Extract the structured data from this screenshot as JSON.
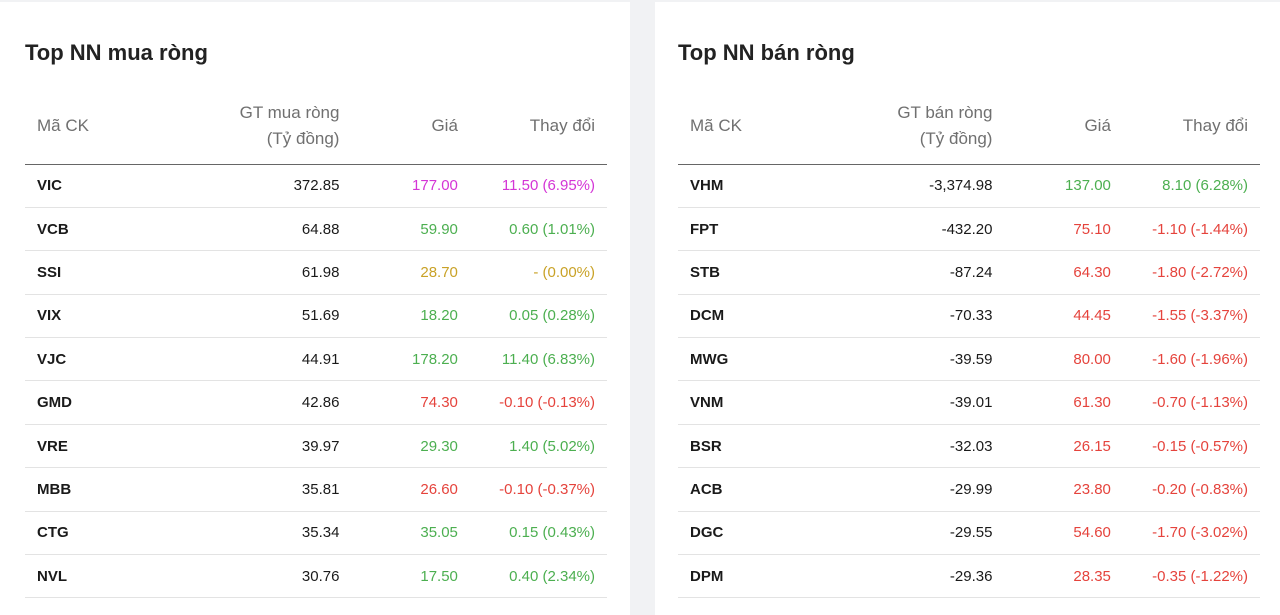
{
  "colors": {
    "ceiling": "#d435d6",
    "up": "#4caf50",
    "ref": "#c9a227",
    "down": "#e5433c"
  },
  "left": {
    "title": "Top NN mua ròng",
    "columns": {
      "symbol": "Mã CK",
      "value_line1": "GT mua ròng",
      "value_line2": "(Tỷ đồng)",
      "price": "Giá",
      "change": "Thay đổi"
    },
    "rows": [
      {
        "symbol": "VIC",
        "value": "372.85",
        "price": "177.00",
        "change": "11.50 (6.95%)",
        "status": "ceiling"
      },
      {
        "symbol": "VCB",
        "value": "64.88",
        "price": "59.90",
        "change": "0.60 (1.01%)",
        "status": "up"
      },
      {
        "symbol": "SSI",
        "value": "61.98",
        "price": "28.70",
        "change": "- (0.00%)",
        "status": "ref"
      },
      {
        "symbol": "VIX",
        "value": "51.69",
        "price": "18.20",
        "change": "0.05 (0.28%)",
        "status": "up"
      },
      {
        "symbol": "VJC",
        "value": "44.91",
        "price": "178.20",
        "change": "11.40 (6.83%)",
        "status": "up"
      },
      {
        "symbol": "GMD",
        "value": "42.86",
        "price": "74.30",
        "change": "-0.10 (-0.13%)",
        "status": "down"
      },
      {
        "symbol": "VRE",
        "value": "39.97",
        "price": "29.30",
        "change": "1.40 (5.02%)",
        "status": "up"
      },
      {
        "symbol": "MBB",
        "value": "35.81",
        "price": "26.60",
        "change": "-0.10 (-0.37%)",
        "status": "down"
      },
      {
        "symbol": "CTG",
        "value": "35.34",
        "price": "35.05",
        "change": "0.15 (0.43%)",
        "status": "up"
      },
      {
        "symbol": "NVL",
        "value": "30.76",
        "price": "17.50",
        "change": "0.40 (2.34%)",
        "status": "up"
      }
    ]
  },
  "right": {
    "title": "Top NN bán ròng",
    "columns": {
      "symbol": "Mã CK",
      "value_line1": "GT bán ròng",
      "value_line2": "(Tỷ đồng)",
      "price": "Giá",
      "change": "Thay đổi"
    },
    "rows": [
      {
        "symbol": "VHM",
        "value": "-3,374.98",
        "price": "137.00",
        "change": "8.10 (6.28%)",
        "status": "up"
      },
      {
        "symbol": "FPT",
        "value": "-432.20",
        "price": "75.10",
        "change": "-1.10 (-1.44%)",
        "status": "down"
      },
      {
        "symbol": "STB",
        "value": "-87.24",
        "price": "64.30",
        "change": "-1.80 (-2.72%)",
        "status": "down"
      },
      {
        "symbol": "DCM",
        "value": "-70.33",
        "price": "44.45",
        "change": "-1.55 (-3.37%)",
        "status": "down"
      },
      {
        "symbol": "MWG",
        "value": "-39.59",
        "price": "80.00",
        "change": "-1.60 (-1.96%)",
        "status": "down"
      },
      {
        "symbol": "VNM",
        "value": "-39.01",
        "price": "61.30",
        "change": "-0.70 (-1.13%)",
        "status": "down"
      },
      {
        "symbol": "BSR",
        "value": "-32.03",
        "price": "26.15",
        "change": "-0.15 (-0.57%)",
        "status": "down"
      },
      {
        "symbol": "ACB",
        "value": "-29.99",
        "price": "23.80",
        "change": "-0.20 (-0.83%)",
        "status": "down"
      },
      {
        "symbol": "DGC",
        "value": "-29.55",
        "price": "54.60",
        "change": "-1.70 (-3.02%)",
        "status": "down"
      },
      {
        "symbol": "DPM",
        "value": "-29.36",
        "price": "28.35",
        "change": "-0.35 (-1.22%)",
        "status": "down"
      }
    ]
  }
}
